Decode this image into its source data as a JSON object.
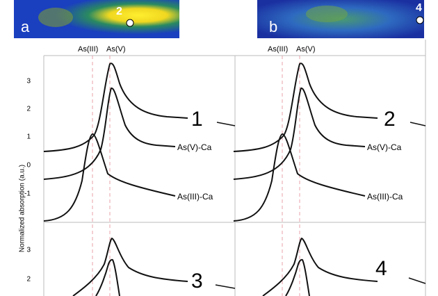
{
  "y_axis_label": "Normalized absorption (a.u.)",
  "yticks_top": [
    3,
    2,
    1,
    0,
    -1
  ],
  "yticks_bottom": [
    3,
    2
  ],
  "panels": [
    {
      "label": "a",
      "point": "2",
      "header": [
        "As(III)",
        "As(V)"
      ],
      "top_number": "1",
      "annotations": [
        "As(V)-Ca",
        "As(III)-Ca"
      ],
      "bottom_number": "3"
    },
    {
      "label": "b",
      "point": "4",
      "header": [
        "As(III)",
        "As(V)"
      ],
      "top_number": "2",
      "annotations": [
        "As(V)-Ca",
        "As(III)-Ca"
      ],
      "bottom_number": "4"
    }
  ]
}
